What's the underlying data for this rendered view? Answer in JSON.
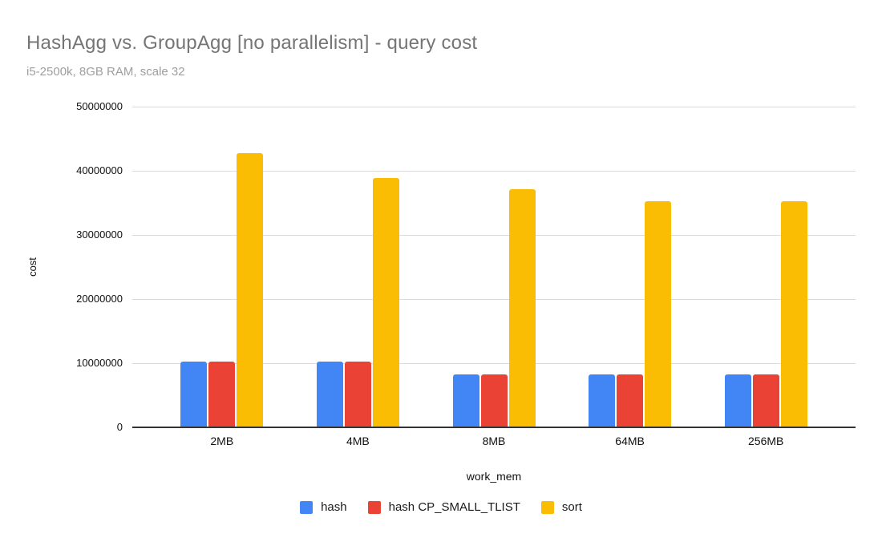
{
  "title": "HashAgg vs. GroupAgg [no parallelism] - query cost",
  "subtitle": "i5-2500k, 8GB RAM, scale 32",
  "colors": {
    "series_hash": "#4285F4",
    "series_hash_cp_small_tlist": "#EA4335",
    "series_sort": "#FBBC04",
    "title_text": "#757575",
    "subtitle_text": "#9E9E9E",
    "gridline": "#DADCE0",
    "axis_line": "#333333"
  },
  "chart_data": {
    "type": "bar",
    "title": "HashAgg vs. GroupAgg [no parallelism] - query cost",
    "subtitle": "i5-2500k, 8GB RAM, scale 32",
    "xlabel": "work_mem",
    "ylabel": "cost",
    "categories": [
      "2MB",
      "4MB",
      "8MB",
      "64MB",
      "256MB"
    ],
    "series": [
      {
        "name": "hash",
        "color": "#4285F4",
        "values": [
          10200000,
          10200000,
          8250000,
          8250000,
          8250000
        ]
      },
      {
        "name": "hash CP_SMALL_TLIST",
        "color": "#EA4335",
        "values": [
          10200000,
          10200000,
          8250000,
          8250000,
          8250000
        ]
      },
      {
        "name": "sort",
        "color": "#FBBC04",
        "values": [
          42700000,
          38900000,
          37100000,
          35300000,
          35300000
        ]
      }
    ],
    "ylim": [
      0,
      50000000
    ],
    "yticks": [
      0,
      10000000,
      20000000,
      30000000,
      40000000,
      50000000
    ],
    "ytick_labels": [
      "0",
      "10000000",
      "20000000",
      "30000000",
      "40000000",
      "50000000"
    ],
    "grid": true,
    "legend_position": "bottom"
  }
}
